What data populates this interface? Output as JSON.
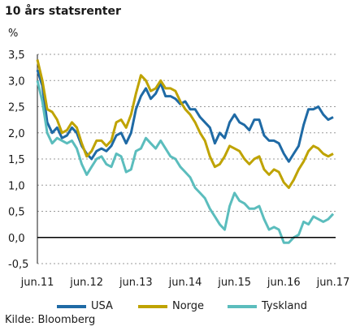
{
  "chart_data": {
    "type": "line",
    "title": "10 års statsrenter",
    "ylabel": "%",
    "ylim": [
      -0.5,
      3.5
    ],
    "yticks": [
      "3,5",
      "3,0",
      "2,5",
      "2,0",
      "1,5",
      "1,0",
      "0,5",
      "0,0",
      "-0,5"
    ],
    "ytick_values": [
      3.5,
      3.0,
      2.5,
      2.0,
      1.5,
      1.0,
      0.5,
      0.0,
      -0.5
    ],
    "xticks": [
      "jun.11",
      "jun.12",
      "jun.13",
      "jun.14",
      "jun.15",
      "jun.16",
      "jun.17"
    ],
    "xlim": [
      2011.45,
      2017.5
    ],
    "grid": true,
    "legend_position": "bottom",
    "source": "Kilde: Bloomberg",
    "series": [
      {
        "name": "USA",
        "color": "#1f6aa5",
        "points": [
          [
            2011.45,
            3.2
          ],
          [
            2011.55,
            2.9
          ],
          [
            2011.65,
            2.2
          ],
          [
            2011.75,
            2.0
          ],
          [
            2011.85,
            2.1
          ],
          [
            2011.95,
            1.9
          ],
          [
            2012.05,
            1.95
          ],
          [
            2012.15,
            2.1
          ],
          [
            2012.25,
            2.0
          ],
          [
            2012.35,
            1.75
          ],
          [
            2012.45,
            1.6
          ],
          [
            2012.55,
            1.5
          ],
          [
            2012.65,
            1.65
          ],
          [
            2012.75,
            1.7
          ],
          [
            2012.85,
            1.65
          ],
          [
            2012.95,
            1.75
          ],
          [
            2013.05,
            1.95
          ],
          [
            2013.15,
            2.0
          ],
          [
            2013.25,
            1.8
          ],
          [
            2013.35,
            2.0
          ],
          [
            2013.45,
            2.45
          ],
          [
            2013.55,
            2.7
          ],
          [
            2013.65,
            2.85
          ],
          [
            2013.75,
            2.65
          ],
          [
            2013.85,
            2.75
          ],
          [
            2013.95,
            2.95
          ],
          [
            2014.05,
            2.7
          ],
          [
            2014.15,
            2.7
          ],
          [
            2014.25,
            2.65
          ],
          [
            2014.35,
            2.55
          ],
          [
            2014.45,
            2.6
          ],
          [
            2014.55,
            2.45
          ],
          [
            2014.65,
            2.45
          ],
          [
            2014.75,
            2.3
          ],
          [
            2014.85,
            2.2
          ],
          [
            2014.95,
            2.1
          ],
          [
            2015.05,
            1.8
          ],
          [
            2015.15,
            2.0
          ],
          [
            2015.25,
            1.9
          ],
          [
            2015.35,
            2.2
          ],
          [
            2015.45,
            2.35
          ],
          [
            2015.55,
            2.2
          ],
          [
            2015.65,
            2.15
          ],
          [
            2015.75,
            2.05
          ],
          [
            2015.85,
            2.25
          ],
          [
            2015.95,
            2.25
          ],
          [
            2016.05,
            1.95
          ],
          [
            2016.15,
            1.85
          ],
          [
            2016.25,
            1.85
          ],
          [
            2016.35,
            1.8
          ],
          [
            2016.45,
            1.6
          ],
          [
            2016.55,
            1.45
          ],
          [
            2016.65,
            1.6
          ],
          [
            2016.75,
            1.75
          ],
          [
            2016.85,
            2.15
          ],
          [
            2016.95,
            2.45
          ],
          [
            2017.05,
            2.45
          ],
          [
            2017.15,
            2.5
          ],
          [
            2017.25,
            2.35
          ],
          [
            2017.35,
            2.25
          ],
          [
            2017.45,
            2.3
          ]
        ]
      },
      {
        "name": "Norge",
        "color": "#bfa300",
        "points": [
          [
            2011.45,
            3.4
          ],
          [
            2011.55,
            3.0
          ],
          [
            2011.65,
            2.45
          ],
          [
            2011.75,
            2.4
          ],
          [
            2011.85,
            2.25
          ],
          [
            2011.95,
            2.0
          ],
          [
            2012.05,
            2.05
          ],
          [
            2012.15,
            2.2
          ],
          [
            2012.25,
            2.1
          ],
          [
            2012.35,
            1.8
          ],
          [
            2012.45,
            1.55
          ],
          [
            2012.55,
            1.65
          ],
          [
            2012.65,
            1.85
          ],
          [
            2012.75,
            1.85
          ],
          [
            2012.85,
            1.75
          ],
          [
            2012.95,
            1.85
          ],
          [
            2013.05,
            2.2
          ],
          [
            2013.15,
            2.25
          ],
          [
            2013.25,
            2.1
          ],
          [
            2013.35,
            2.35
          ],
          [
            2013.45,
            2.75
          ],
          [
            2013.55,
            3.1
          ],
          [
            2013.65,
            3.0
          ],
          [
            2013.75,
            2.8
          ],
          [
            2013.85,
            2.85
          ],
          [
            2013.95,
            3.0
          ],
          [
            2014.05,
            2.85
          ],
          [
            2014.15,
            2.85
          ],
          [
            2014.25,
            2.8
          ],
          [
            2014.35,
            2.6
          ],
          [
            2014.45,
            2.45
          ],
          [
            2014.55,
            2.35
          ],
          [
            2014.65,
            2.2
          ],
          [
            2014.75,
            2.0
          ],
          [
            2014.85,
            1.85
          ],
          [
            2014.95,
            1.55
          ],
          [
            2015.05,
            1.35
          ],
          [
            2015.15,
            1.4
          ],
          [
            2015.25,
            1.55
          ],
          [
            2015.35,
            1.75
          ],
          [
            2015.45,
            1.7
          ],
          [
            2015.55,
            1.65
          ],
          [
            2015.65,
            1.5
          ],
          [
            2015.75,
            1.4
          ],
          [
            2015.85,
            1.5
          ],
          [
            2015.95,
            1.55
          ],
          [
            2016.05,
            1.3
          ],
          [
            2016.15,
            1.2
          ],
          [
            2016.25,
            1.3
          ],
          [
            2016.35,
            1.25
          ],
          [
            2016.45,
            1.05
          ],
          [
            2016.55,
            0.95
          ],
          [
            2016.65,
            1.1
          ],
          [
            2016.75,
            1.3
          ],
          [
            2016.85,
            1.45
          ],
          [
            2016.95,
            1.65
          ],
          [
            2017.05,
            1.75
          ],
          [
            2017.15,
            1.7
          ],
          [
            2017.25,
            1.6
          ],
          [
            2017.35,
            1.55
          ],
          [
            2017.45,
            1.6
          ]
        ]
      },
      {
        "name": "Tyskland",
        "color": "#5bbdbd",
        "points": [
          [
            2011.45,
            3.0
          ],
          [
            2011.55,
            2.6
          ],
          [
            2011.65,
            2.0
          ],
          [
            2011.75,
            1.8
          ],
          [
            2011.85,
            1.9
          ],
          [
            2011.95,
            1.85
          ],
          [
            2012.05,
            1.8
          ],
          [
            2012.15,
            1.85
          ],
          [
            2012.25,
            1.7
          ],
          [
            2012.35,
            1.4
          ],
          [
            2012.45,
            1.2
          ],
          [
            2012.55,
            1.35
          ],
          [
            2012.65,
            1.5
          ],
          [
            2012.75,
            1.55
          ],
          [
            2012.85,
            1.4
          ],
          [
            2012.95,
            1.35
          ],
          [
            2013.05,
            1.6
          ],
          [
            2013.15,
            1.55
          ],
          [
            2013.25,
            1.25
          ],
          [
            2013.35,
            1.3
          ],
          [
            2013.45,
            1.65
          ],
          [
            2013.55,
            1.7
          ],
          [
            2013.65,
            1.9
          ],
          [
            2013.75,
            1.8
          ],
          [
            2013.85,
            1.7
          ],
          [
            2013.95,
            1.85
          ],
          [
            2014.05,
            1.7
          ],
          [
            2014.15,
            1.55
          ],
          [
            2014.25,
            1.5
          ],
          [
            2014.35,
            1.35
          ],
          [
            2014.45,
            1.25
          ],
          [
            2014.55,
            1.15
          ],
          [
            2014.65,
            0.95
          ],
          [
            2014.75,
            0.85
          ],
          [
            2014.85,
            0.75
          ],
          [
            2014.95,
            0.55
          ],
          [
            2015.05,
            0.4
          ],
          [
            2015.15,
            0.25
          ],
          [
            2015.25,
            0.15
          ],
          [
            2015.35,
            0.6
          ],
          [
            2015.45,
            0.85
          ],
          [
            2015.55,
            0.7
          ],
          [
            2015.65,
            0.65
          ],
          [
            2015.75,
            0.55
          ],
          [
            2015.85,
            0.55
          ],
          [
            2015.95,
            0.6
          ],
          [
            2016.05,
            0.35
          ],
          [
            2016.15,
            0.15
          ],
          [
            2016.25,
            0.2
          ],
          [
            2016.35,
            0.15
          ],
          [
            2016.45,
            -0.1
          ],
          [
            2016.55,
            -0.1
          ],
          [
            2016.65,
            0.0
          ],
          [
            2016.75,
            0.05
          ],
          [
            2016.85,
            0.3
          ],
          [
            2016.95,
            0.25
          ],
          [
            2017.05,
            0.4
          ],
          [
            2017.15,
            0.35
          ],
          [
            2017.25,
            0.3
          ],
          [
            2017.35,
            0.35
          ],
          [
            2017.45,
            0.45
          ]
        ]
      }
    ]
  }
}
